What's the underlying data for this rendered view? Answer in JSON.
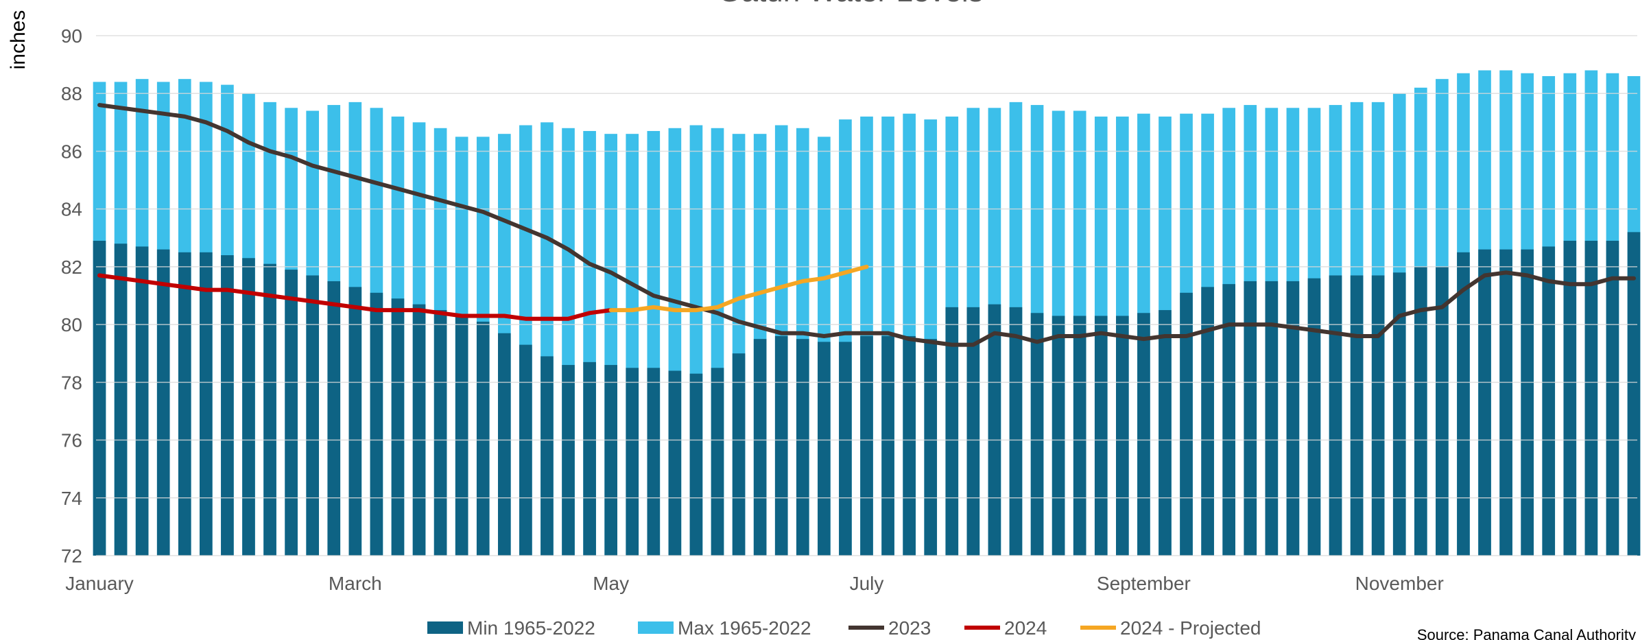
{
  "chart_data": {
    "type": "combo",
    "title": "Gatun Water Levels",
    "y_label": "inches",
    "source": "Source: Panama Canal Authority",
    "categories": [
      "January",
      null,
      null,
      null,
      null,
      null,
      null,
      null,
      null,
      null,
      null,
      null,
      "March",
      null,
      null,
      null,
      null,
      null,
      null,
      null,
      null,
      null,
      null,
      null,
      "May",
      null,
      null,
      null,
      null,
      null,
      null,
      null,
      null,
      null,
      null,
      null,
      "July",
      null,
      null,
      null,
      null,
      null,
      null,
      null,
      null,
      null,
      null,
      null,
      null,
      "September",
      null,
      null,
      null,
      null,
      null,
      null,
      null,
      null,
      null,
      null,
      null,
      "November",
      null,
      null,
      null,
      null,
      null,
      null,
      null,
      null,
      null,
      null,
      null
    ],
    "ylim": [
      72,
      90
    ],
    "yticks": [
      72,
      74,
      76,
      78,
      80,
      82,
      84,
      86,
      88,
      90
    ],
    "grid": true,
    "legend": "bottom",
    "series": [
      {
        "name": "Max 1965-2022",
        "type": "bar",
        "color": "#3cbfea",
        "values": [
          88.4,
          88.4,
          88.5,
          88.4,
          88.5,
          88.4,
          88.3,
          88.0,
          87.7,
          87.5,
          87.4,
          87.6,
          87.7,
          87.5,
          87.2,
          87.0,
          86.8,
          86.5,
          86.5,
          86.6,
          86.9,
          87.0,
          86.8,
          86.7,
          86.6,
          86.6,
          86.7,
          86.8,
          86.9,
          86.8,
          86.6,
          86.6,
          86.9,
          86.8,
          86.5,
          87.1,
          87.2,
          87.2,
          87.3,
          87.1,
          87.2,
          87.5,
          87.5,
          87.7,
          87.6,
          87.4,
          87.4,
          87.2,
          87.2,
          87.3,
          87.2,
          87.3,
          87.3,
          87.5,
          87.6,
          87.5,
          87.5,
          87.5,
          87.6,
          87.7,
          87.7,
          88.0,
          88.2,
          88.5,
          88.7,
          88.8,
          88.8,
          88.7,
          88.6,
          88.7,
          88.8,
          88.7,
          88.6
        ]
      },
      {
        "name": "Min 1965-2022",
        "type": "bar",
        "color": "#0e6384",
        "values": [
          82.9,
          82.8,
          82.7,
          82.6,
          82.5,
          82.5,
          82.4,
          82.3,
          82.1,
          81.9,
          81.7,
          81.5,
          81.3,
          81.1,
          80.9,
          80.7,
          80.5,
          80.3,
          80.1,
          79.7,
          79.3,
          78.9,
          78.6,
          78.7,
          78.6,
          78.5,
          78.5,
          78.4,
          78.3,
          78.5,
          79.0,
          79.5,
          79.6,
          79.5,
          79.4,
          79.4,
          79.6,
          79.6,
          79.6,
          79.5,
          80.6,
          80.6,
          80.7,
          80.6,
          80.4,
          80.3,
          80.3,
          80.3,
          80.3,
          80.4,
          80.5,
          81.1,
          81.3,
          81.4,
          81.5,
          81.5,
          81.5,
          81.6,
          81.7,
          81.7,
          81.7,
          81.8,
          82.0,
          82.0,
          82.5,
          82.6,
          82.6,
          82.6,
          82.7,
          82.9,
          82.9,
          82.9,
          83.2
        ]
      },
      {
        "name": "2023",
        "type": "line",
        "color": "#433530",
        "values": [
          87.6,
          87.5,
          87.4,
          87.3,
          87.2,
          87.0,
          86.7,
          86.3,
          86.0,
          85.8,
          85.5,
          85.3,
          85.1,
          84.9,
          84.7,
          84.5,
          84.3,
          84.1,
          83.9,
          83.6,
          83.3,
          83.0,
          82.6,
          82.1,
          81.8,
          81.4,
          81.0,
          80.8,
          80.6,
          80.4,
          80.1,
          79.9,
          79.7,
          79.7,
          79.6,
          79.7,
          79.7,
          79.7,
          79.5,
          79.4,
          79.3,
          79.3,
          79.7,
          79.6,
          79.4,
          79.6,
          79.6,
          79.7,
          79.6,
          79.5,
          79.6,
          79.6,
          79.8,
          80.0,
          80.0,
          80.0,
          79.9,
          79.8,
          79.7,
          79.6,
          79.6,
          80.3,
          80.5,
          80.6,
          81.2,
          81.7,
          81.8,
          81.7,
          81.5,
          81.4,
          81.4,
          81.6,
          81.6
        ]
      },
      {
        "name": "2024",
        "type": "line",
        "color": "#c00000",
        "values": [
          81.7,
          81.6,
          81.5,
          81.4,
          81.3,
          81.2,
          81.2,
          81.1,
          81.0,
          80.9,
          80.8,
          80.7,
          80.6,
          80.5,
          80.5,
          80.5,
          80.4,
          80.3,
          80.3,
          80.3,
          80.2,
          80.2,
          80.2,
          80.4,
          80.5,
          null,
          null,
          null,
          null,
          null,
          null,
          null,
          null,
          null,
          null,
          null,
          null,
          null,
          null,
          null,
          null,
          null,
          null,
          null,
          null,
          null,
          null,
          null,
          null,
          null,
          null,
          null,
          null,
          null,
          null,
          null,
          null,
          null,
          null,
          null,
          null,
          null,
          null,
          null,
          null,
          null,
          null,
          null,
          null,
          null,
          null,
          null,
          null
        ]
      },
      {
        "name": "2024 - Projected",
        "type": "line",
        "color": "#f5a623",
        "values": [
          null,
          null,
          null,
          null,
          null,
          null,
          null,
          null,
          null,
          null,
          null,
          null,
          null,
          null,
          null,
          null,
          null,
          null,
          null,
          null,
          null,
          null,
          null,
          null,
          80.5,
          80.5,
          80.6,
          80.5,
          80.5,
          80.6,
          80.9,
          81.1,
          81.3,
          81.5,
          81.6,
          81.8,
          82.0,
          null,
          null,
          null,
          null,
          null,
          null,
          null,
          null,
          null,
          null,
          null,
          null,
          null,
          null,
          null,
          null,
          null,
          null,
          null,
          null,
          null,
          null,
          null,
          null,
          null,
          null,
          null,
          null,
          null,
          null,
          null,
          null,
          null,
          null,
          null,
          null
        ]
      }
    ]
  }
}
